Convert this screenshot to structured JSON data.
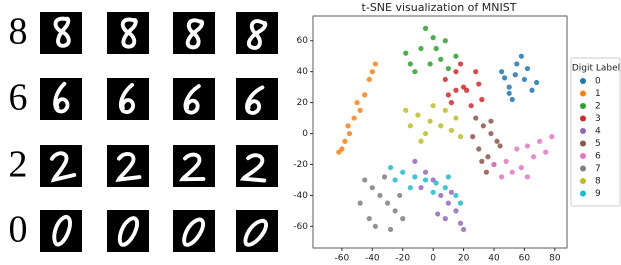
{
  "image_grid": {
    "row_labels": [
      "8",
      "6",
      "2",
      "0"
    ]
  },
  "chart_data": {
    "type": "scatter",
    "title": "t-SNE visualization of MNIST",
    "legend_title": "Digit Label",
    "legend": "right",
    "xlim": [
      -79,
      88
    ],
    "ylim": [
      -74,
      76
    ],
    "xticks": [
      -60,
      -40,
      -20,
      0,
      20,
      40,
      60,
      80
    ],
    "yticks": [
      -60,
      -40,
      -20,
      0,
      20,
      40,
      60
    ],
    "series": [
      {
        "name": "0",
        "color": "#1f77b4",
        "x": [
          45,
          50,
          55,
          60,
          65,
          52,
          58,
          47,
          62,
          68,
          54,
          50
        ],
        "values": [
          40,
          30,
          45,
          35,
          28,
          22,
          50,
          36,
          42,
          33,
          38,
          26
        ]
      },
      {
        "name": "1",
        "color": "#ff7f0e",
        "x": [
          -38,
          -42,
          -45,
          -48,
          -52,
          -55,
          -58,
          -62,
          -40,
          -50,
          -56,
          -60
        ],
        "values": [
          45,
          35,
          25,
          15,
          10,
          0,
          -5,
          -12,
          40,
          20,
          5,
          -10
        ]
      },
      {
        "name": "2",
        "color": "#2ca02c",
        "x": [
          -15,
          -8,
          0,
          8,
          15,
          -5,
          5,
          -12,
          2,
          10,
          -2,
          -18
        ],
        "values": [
          45,
          55,
          62,
          60,
          50,
          68,
          48,
          40,
          55,
          42,
          45,
          52
        ]
      },
      {
        "name": "3",
        "color": "#d62728",
        "x": [
          8,
          15,
          22,
          30,
          12,
          25,
          18,
          28,
          10,
          20,
          32,
          15
        ],
        "values": [
          35,
          40,
          28,
          32,
          20,
          18,
          45,
          40,
          25,
          30,
          22,
          28
        ]
      },
      {
        "name": "4",
        "color": "#9467bd",
        "x": [
          -12,
          -5,
          0,
          5,
          10,
          15,
          18,
          -8,
          3,
          12,
          20,
          8
        ],
        "values": [
          -18,
          -25,
          -30,
          -40,
          -45,
          -50,
          -58,
          -35,
          -52,
          -38,
          -62,
          -55
        ]
      },
      {
        "name": "5",
        "color": "#8c564b",
        "x": [
          28,
          33,
          38,
          42,
          30,
          36,
          40,
          44,
          32,
          38,
          26,
          35
        ],
        "values": [
          10,
          5,
          0,
          -5,
          -10,
          -15,
          -20,
          -8,
          -18,
          8,
          -2,
          -25
        ]
      },
      {
        "name": "6",
        "color": "#e377c2",
        "x": [
          40,
          48,
          55,
          62,
          70,
          78,
          45,
          58,
          66,
          74,
          52,
          62
        ],
        "values": [
          -20,
          -18,
          -10,
          -8,
          -5,
          -2,
          -28,
          -22,
          -15,
          -12,
          -25,
          -28
        ]
      },
      {
        "name": "7",
        "color": "#7f7f7f",
        "x": [
          -45,
          -40,
          -35,
          -30,
          -25,
          -20,
          -48,
          -42,
          -38,
          -28,
          -32,
          -22
        ],
        "values": [
          -30,
          -35,
          -40,
          -45,
          -50,
          -55,
          -45,
          -55,
          -60,
          -62,
          -28,
          -40
        ]
      },
      {
        "name": "8",
        "color": "#bcbd22",
        "x": [
          -18,
          -10,
          -2,
          5,
          12,
          18,
          -15,
          -5,
          8,
          15,
          0,
          -8
        ],
        "values": [
          15,
          12,
          8,
          5,
          2,
          -2,
          5,
          0,
          15,
          10,
          18,
          -5
        ]
      },
      {
        "name": "9",
        "color": "#17becf",
        "x": [
          -28,
          -20,
          -12,
          -5,
          2,
          8,
          15,
          -25,
          -15,
          0,
          10,
          18
        ],
        "values": [
          -22,
          -25,
          -28,
          -30,
          -32,
          -35,
          -40,
          -30,
          -35,
          -38,
          -28,
          -45
        ]
      }
    ]
  }
}
